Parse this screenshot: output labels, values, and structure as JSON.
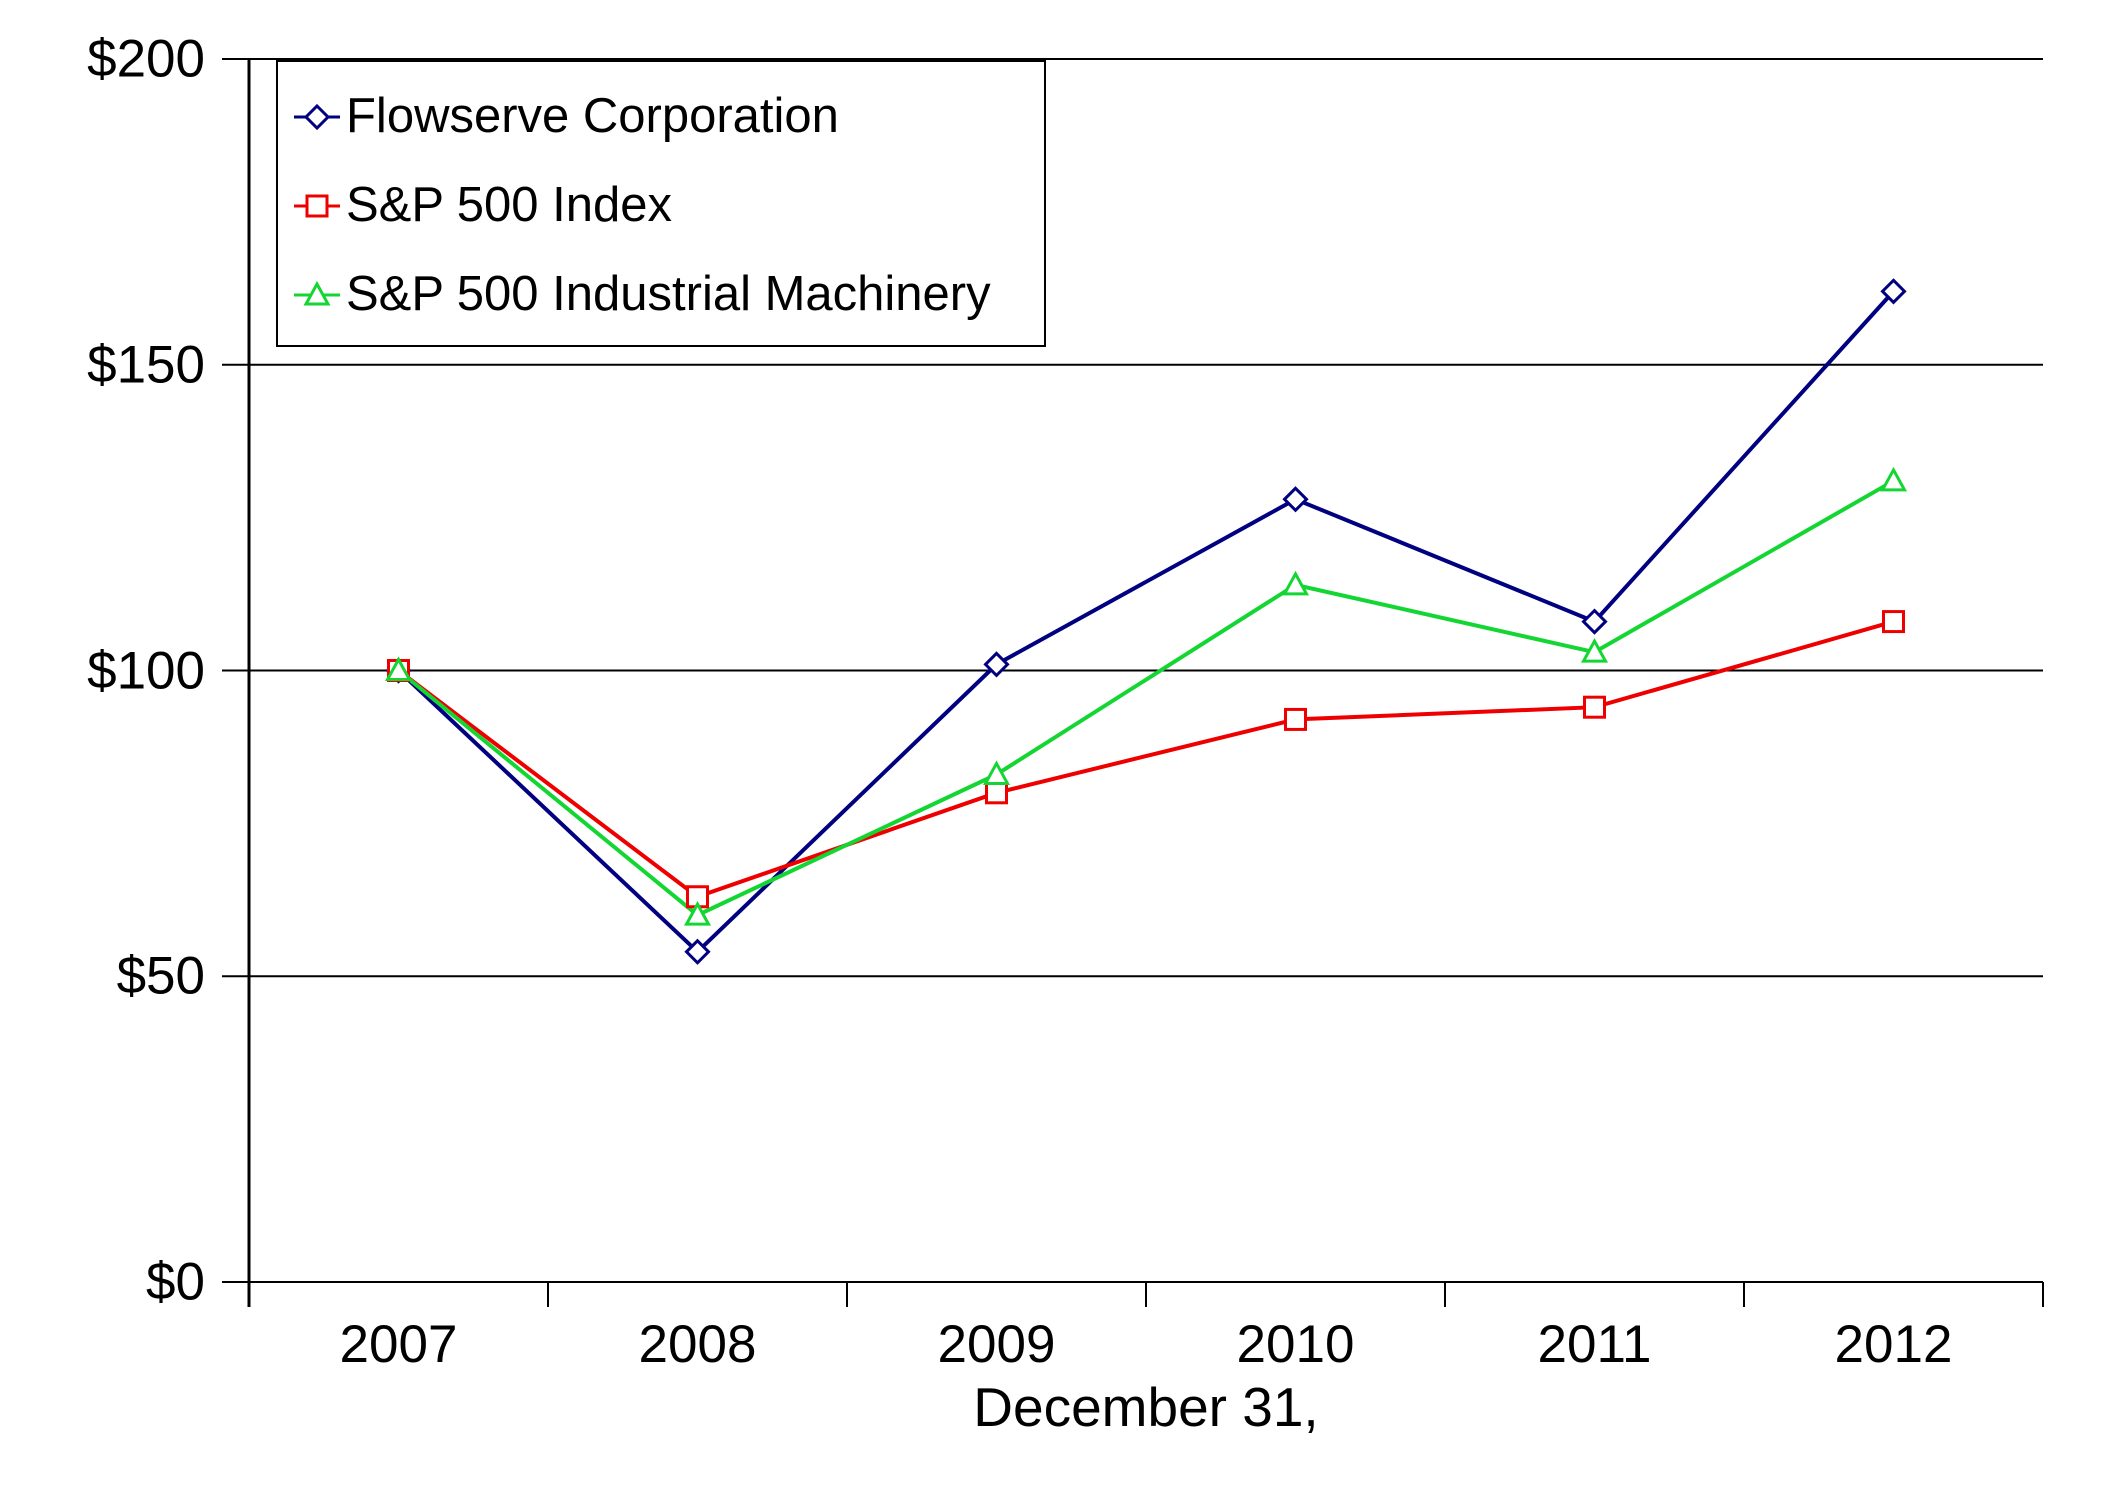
{
  "chart_data": {
    "type": "line",
    "title": "",
    "xlabel": "December 31,",
    "ylabel": "",
    "categories": [
      "2007",
      "2008",
      "2009",
      "2010",
      "2011",
      "2012"
    ],
    "ylim": [
      0,
      200
    ],
    "y_ticks": [
      0,
      50,
      100,
      150,
      200
    ],
    "y_tick_labels": [
      "$0",
      "$50",
      "$100",
      "$150",
      "$200"
    ],
    "grid": "horizontal",
    "legend_position": "top-left-inside",
    "axis_color": "#000000",
    "series": [
      {
        "name": "Flowserve Corporation",
        "marker": "diamond",
        "color": "#000080",
        "values": [
          100,
          54,
          101,
          128,
          108,
          162
        ]
      },
      {
        "name": "S&P 500 Index",
        "marker": "square",
        "color": "#EE0000",
        "values": [
          100,
          63,
          80,
          92,
          94,
          108
        ]
      },
      {
        "name": "S&P 500 Industrial Machinery",
        "marker": "triangle",
        "color": "#14D633",
        "values": [
          100,
          60,
          83,
          114,
          103,
          131
        ]
      }
    ]
  }
}
